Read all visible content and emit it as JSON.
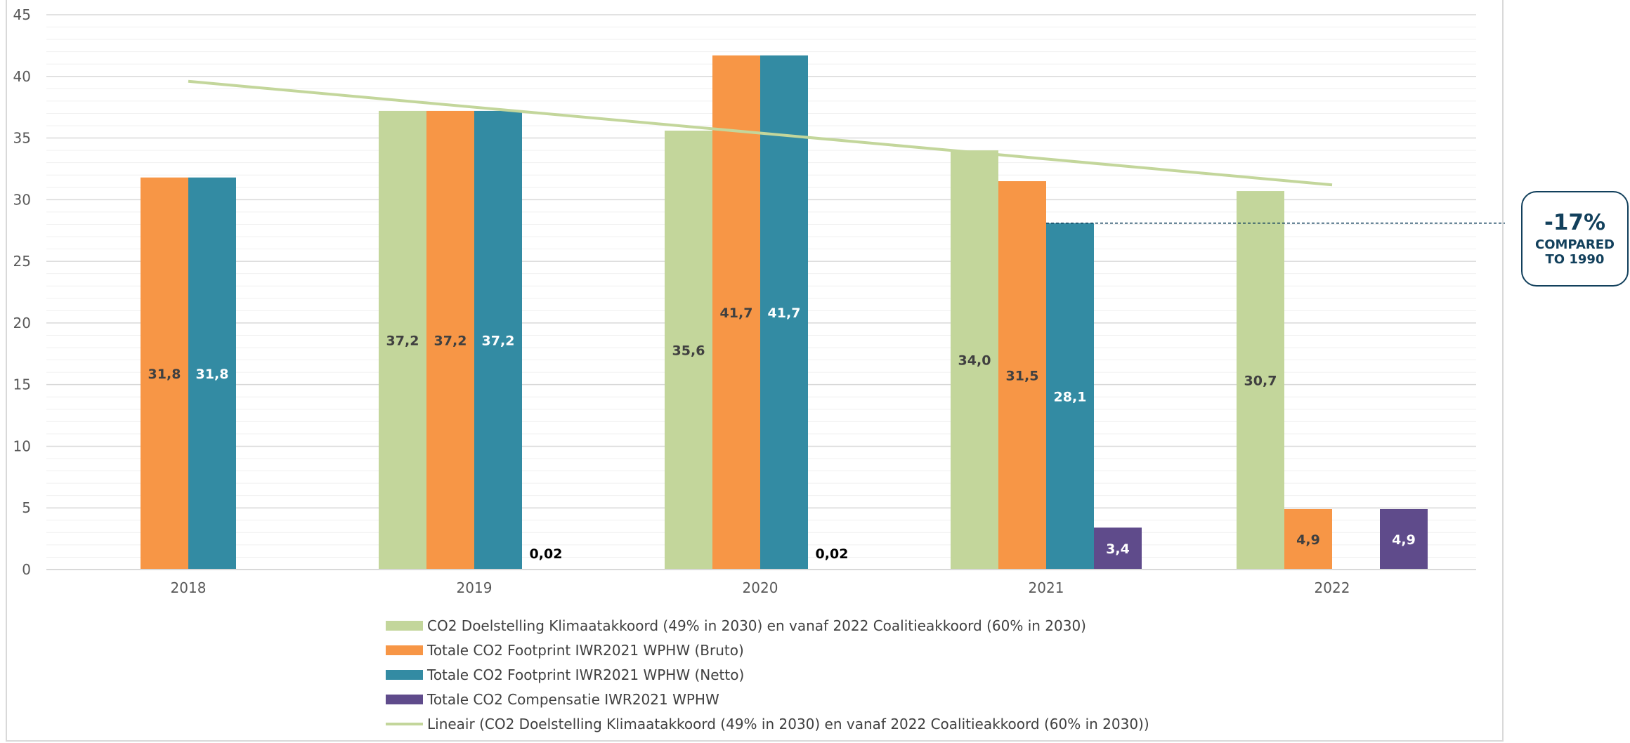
{
  "chart_data": {
    "type": "bar",
    "title": "",
    "xlabel": "",
    "ylabel": "",
    "categories": [
      "2018",
      "2019",
      "2020",
      "2021",
      "2022"
    ],
    "ylim": [
      0,
      45
    ],
    "yticks": [
      0,
      5,
      10,
      15,
      20,
      25,
      30,
      35,
      40,
      45
    ],
    "grid": true,
    "legend_position": "bottom",
    "series": [
      {
        "name": "CO2 Doelstelling Klimaatakkoord (49% in 2030) en vanaf 2022 Coalitieakkoord (60% in 2030)",
        "color": "#c3d69b",
        "label_color": "#404040",
        "values": [
          null,
          37.2,
          35.6,
          34.0,
          30.7
        ],
        "labels": [
          "",
          "37,2",
          "35,6",
          "34,0",
          "30,7"
        ]
      },
      {
        "name": "Totale CO2 Footprint IWR2021 WPHW (Bruto)",
        "color": "#f79646",
        "label_color": "#404040",
        "values": [
          31.8,
          37.2,
          41.7,
          31.5,
          4.9
        ],
        "labels": [
          "31,8",
          "37,2",
          "41,7",
          "31,5",
          "4,9"
        ]
      },
      {
        "name": "Totale CO2 Footprint IWR2021 WPHW (Netto)",
        "color": "#338ba3",
        "label_color": "#ffffff",
        "values": [
          31.8,
          37.2,
          41.7,
          28.1,
          null
        ],
        "labels": [
          "31,8",
          "37,2",
          "41,7",
          "28,1",
          ""
        ]
      },
      {
        "name": "Totale CO2 Compensatie IWR2021 WPHW",
        "color": "#5f4b8b",
        "label_color": "#ffffff",
        "values": [
          null,
          0.02,
          0.02,
          3.4,
          4.9
        ],
        "labels": [
          "",
          "0,02",
          "0,02",
          "3,4",
          "4,9"
        ]
      }
    ],
    "trendline": {
      "name": "Lineair (CO2 Doelstelling Klimaatakkoord (49% in 2030) en vanaf 2022 Coalitieakkoord (60% in 2030))",
      "color": "#c3d69b",
      "start": {
        "x": "2018",
        "y": 39.6
      },
      "end": {
        "x": "2022",
        "y": 31.2
      }
    },
    "reference_line": {
      "y": 28.1,
      "color": "#12405c",
      "style": "dashed"
    },
    "annotation": {
      "value": "-17%",
      "text": "COMPARED TO 1990",
      "color": "#12405c"
    }
  }
}
